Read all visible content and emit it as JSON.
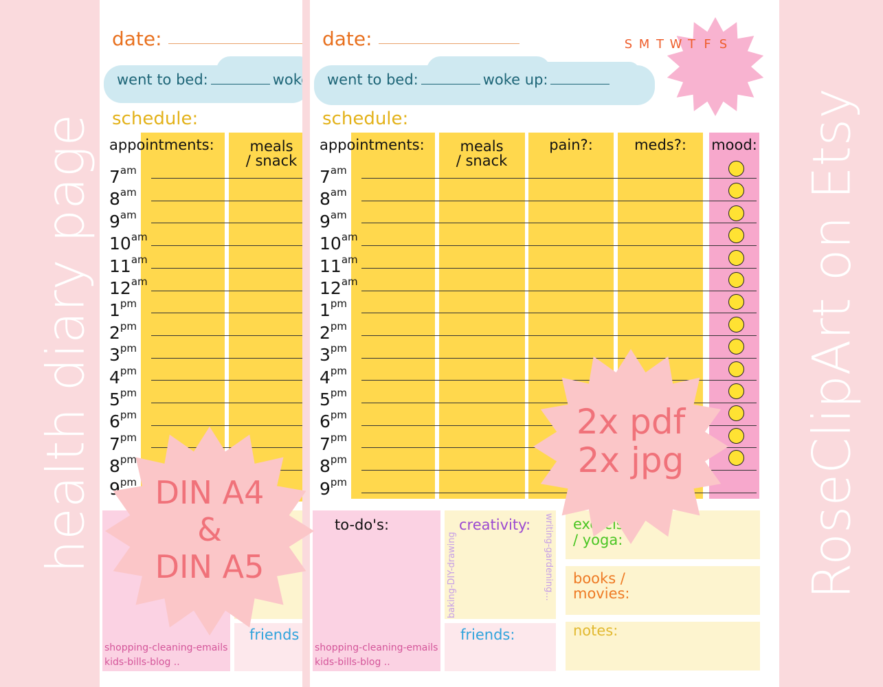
{
  "side": {
    "left": "health diary page",
    "right": "RoseClipArt on Etsy"
  },
  "page": {
    "date_label": "date:",
    "went_to_bed": "went to bed:",
    "woke_up": "woke up:",
    "schedule_label": "schedule:",
    "columns": [
      "appointments:",
      "meals\n/ snack",
      "pain?:",
      "meds?:",
      "mood:"
    ],
    "hours": [
      {
        "n": "7",
        "s": "am"
      },
      {
        "n": "8",
        "s": "am"
      },
      {
        "n": "9",
        "s": "am"
      },
      {
        "n": "10",
        "s": "am"
      },
      {
        "n": "11",
        "s": "am"
      },
      {
        "n": "12",
        "s": "am"
      },
      {
        "n": "1",
        "s": "pm"
      },
      {
        "n": "2",
        "s": "pm"
      },
      {
        "n": "3",
        "s": "pm"
      },
      {
        "n": "4",
        "s": "pm"
      },
      {
        "n": "5",
        "s": "pm"
      },
      {
        "n": "6",
        "s": "pm"
      },
      {
        "n": "7",
        "s": "pm"
      },
      {
        "n": "8",
        "s": "pm"
      },
      {
        "n": "9",
        "s": "pm"
      }
    ],
    "weekdays": [
      "S",
      "M",
      "T",
      "W",
      "T",
      "F",
      "S"
    ],
    "todo_label": "to-do's:",
    "todo_hint_1": "shopping-cleaning-emails",
    "todo_hint_2": "kids-bills-blog ..",
    "creativity_label": "creativity:",
    "creativity_hint_left": "baking-DIY-drawing",
    "creativity_hint_right": "writing-gardening...",
    "friends_label": "friends:",
    "exercise_label": "exercise\n/ yoga:",
    "books_label": "books /\nmovies:",
    "notes_label": "notes:"
  },
  "left_sheet": {
    "meals_label": "meals\n/ snack",
    "friends_label": "friends"
  },
  "badges": {
    "formats": {
      "line1": "DIN A4",
      "line2": "&",
      "line3": "DIN A5"
    },
    "files": {
      "line1": "2x pdf",
      "line2": "2x jpg"
    }
  },
  "colors": {
    "background": "#fadadd",
    "yellow": "#ffd84d",
    "mood_pink": "#f7a8cc",
    "todo_pink": "#fbd2e3",
    "cream": "#fdf4cf",
    "cloud": "#cfe9f1",
    "burst": "#fbc6c8",
    "burst_text": "#f0727a",
    "date_orange": "#e8701e",
    "schedule_yellow": "#e3b21a",
    "teal_text": "#1d6577",
    "purple_text": "#9b49d1",
    "friends_blue": "#2fa3dc",
    "exercise_green": "#4ac523",
    "books_orange": "#ee7a24",
    "notes_yellow": "#e2b930",
    "hint_pink": "#d4559a"
  }
}
